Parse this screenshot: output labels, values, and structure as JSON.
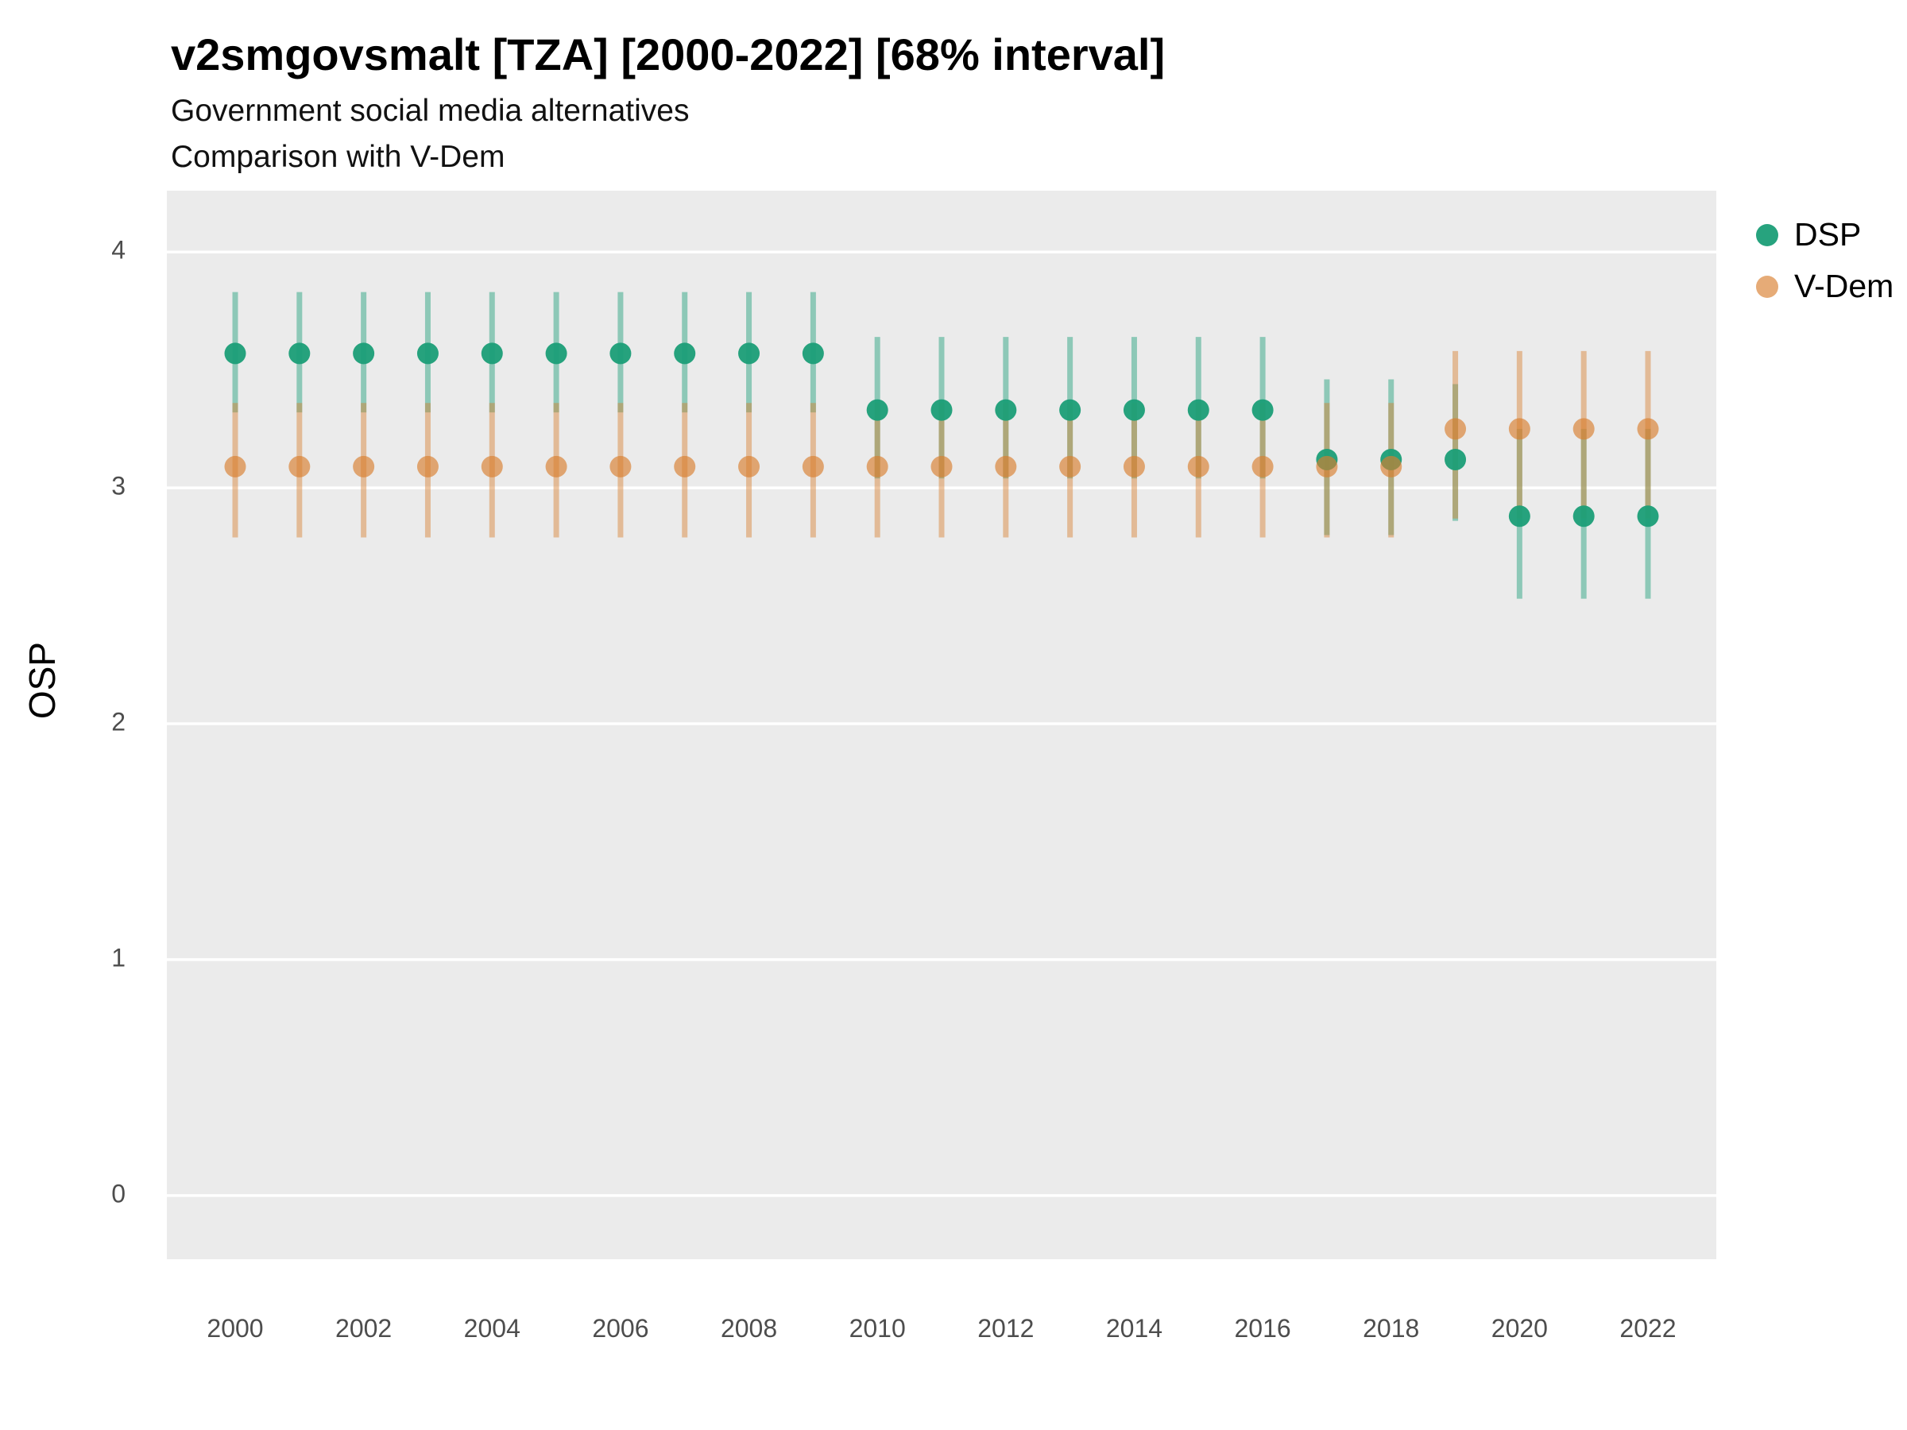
{
  "title": "v2smgovsmalt [TZA] [2000-2022] [68% interval]",
  "subtitle1": "Government social media alternatives",
  "subtitle2": "Comparison with V-Dem",
  "ylabel": "OSP",
  "chart_data": {
    "type": "scatter",
    "title": "v2smgovsmalt [TZA] [2000-2022] [68% interval]",
    "subtitle": "Government social media alternatives — Comparison with V-Dem",
    "xlabel": "",
    "ylabel": "OSP",
    "x": [
      2000,
      2001,
      2002,
      2003,
      2004,
      2005,
      2006,
      2007,
      2008,
      2009,
      2010,
      2011,
      2012,
      2013,
      2014,
      2015,
      2016,
      2017,
      2018,
      2019,
      2020,
      2021,
      2022
    ],
    "xticks": [
      2000,
      2002,
      2004,
      2006,
      2008,
      2010,
      2012,
      2014,
      2016,
      2018,
      2020,
      2022
    ],
    "yticks": [
      0,
      1,
      2,
      3,
      4
    ],
    "ylim": [
      -0.27,
      4.26
    ],
    "interval": "68%",
    "legend_position": "right",
    "grid": "major-horizontal",
    "panel_bg": "#EBEBEB",
    "grid_color": "#FFFFFF",
    "tick_label_color": "#4D4D4D",
    "series": [
      {
        "name": "DSP",
        "color": "#1B9E77",
        "point_opacity": 0.95,
        "bar_opacity": 0.45,
        "values": [
          3.57,
          3.57,
          3.57,
          3.57,
          3.57,
          3.57,
          3.57,
          3.57,
          3.57,
          3.57,
          3.33,
          3.33,
          3.33,
          3.33,
          3.33,
          3.33,
          3.33,
          3.12,
          3.12,
          3.12,
          2.88,
          2.88,
          2.88
        ],
        "lower": [
          3.32,
          3.32,
          3.32,
          3.32,
          3.32,
          3.32,
          3.32,
          3.32,
          3.32,
          3.32,
          3.04,
          3.04,
          3.04,
          3.04,
          3.04,
          3.04,
          3.04,
          2.8,
          2.8,
          2.86,
          2.53,
          2.53,
          2.53
        ],
        "upper": [
          3.83,
          3.83,
          3.83,
          3.83,
          3.83,
          3.83,
          3.83,
          3.83,
          3.83,
          3.83,
          3.64,
          3.64,
          3.64,
          3.64,
          3.64,
          3.64,
          3.64,
          3.46,
          3.46,
          3.44,
          3.25,
          3.25,
          3.25
        ]
      },
      {
        "name": "V-Dem",
        "color": "#D87E2E",
        "point_opacity": 0.65,
        "bar_opacity": 0.45,
        "values": [
          3.09,
          3.09,
          3.09,
          3.09,
          3.09,
          3.09,
          3.09,
          3.09,
          3.09,
          3.09,
          3.09,
          3.09,
          3.09,
          3.09,
          3.09,
          3.09,
          3.09,
          3.09,
          3.09,
          3.25,
          3.25,
          3.25,
          3.25
        ],
        "lower": [
          2.79,
          2.79,
          2.79,
          2.79,
          2.79,
          2.79,
          2.79,
          2.79,
          2.79,
          2.79,
          2.79,
          2.79,
          2.79,
          2.79,
          2.79,
          2.79,
          2.79,
          2.79,
          2.79,
          2.87,
          2.87,
          2.87,
          2.87
        ],
        "upper": [
          3.36,
          3.36,
          3.36,
          3.36,
          3.36,
          3.36,
          3.36,
          3.36,
          3.36,
          3.36,
          3.36,
          3.36,
          3.36,
          3.36,
          3.36,
          3.36,
          3.36,
          3.36,
          3.36,
          3.58,
          3.58,
          3.58,
          3.58
        ]
      }
    ]
  }
}
